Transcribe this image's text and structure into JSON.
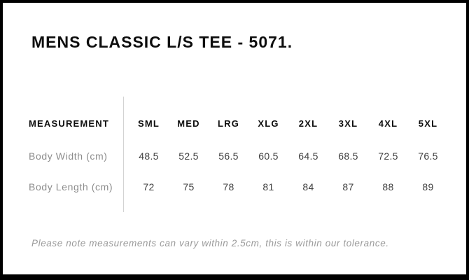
{
  "title": "MENS CLASSIC L/S TEE - 5071.",
  "size_chart": {
    "columns": [
      "MEASUREMENT",
      "SML",
      "MED",
      "LRG",
      "XLG",
      "2XL",
      "3XL",
      "4XL",
      "5XL"
    ],
    "rows": [
      {
        "label": "Body Width (cm)",
        "values": [
          "48.5",
          "52.5",
          "56.5",
          "60.5",
          "64.5",
          "68.5",
          "72.5",
          "76.5"
        ]
      },
      {
        "label": "Body Length (cm)",
        "values": [
          "72",
          "75",
          "78",
          "81",
          "84",
          "87",
          "88",
          "89"
        ]
      }
    ]
  },
  "note": "Please note measurements can vary within 2.5cm, this is within our tolerance.",
  "colors": {
    "border": "#000000",
    "background": "#ffffff",
    "heading": "#0d0d0d",
    "value": "#3f3f3f",
    "label": "#8c8c8c",
    "note": "#9a9a9a",
    "divider": "#d2d2d2"
  }
}
